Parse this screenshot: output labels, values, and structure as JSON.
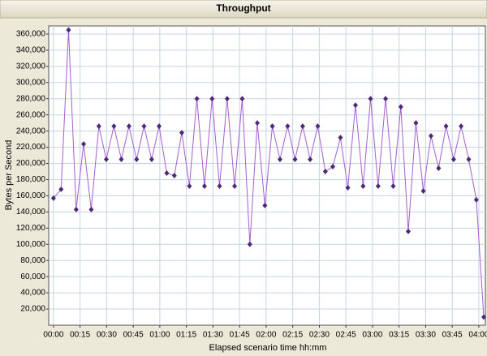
{
  "chart_data": {
    "type": "line",
    "title": "Throughput",
    "x_label": "Elapsed scenario time hh:mm",
    "y_label": "Bytes per Second",
    "x": [
      0,
      4.3,
      8.5,
      12.8,
      17.0,
      21.3,
      25.6,
      29.8,
      34.1,
      38.3,
      42.6,
      46.9,
      51.1,
      55.4,
      59.6,
      63.9,
      68.2,
      72.4,
      76.7,
      80.9,
      85.2,
      89.5,
      93.7,
      98.0,
      102.2,
      106.5,
      110.8,
      115.0,
      119.3,
      123.5,
      127.8,
      132.1,
      136.3,
      140.6,
      144.8,
      149.1,
      153.4,
      157.6,
      161.9,
      166.1,
      170.4,
      174.7,
      178.9,
      183.2,
      187.4,
      191.7,
      196.0,
      200.2,
      204.5,
      208.7,
      213.0,
      217.3,
      221.5,
      225.8,
      230.0,
      234.3,
      238.6,
      242.8
    ],
    "series": [
      {
        "name": "Throughput",
        "color": "#a45fd0",
        "marker_color": "#4b2a78",
        "values": [
          157000,
          168000,
          365000,
          143000,
          224000,
          143000,
          246000,
          205000,
          246000,
          205000,
          246000,
          205000,
          246000,
          205000,
          246000,
          188000,
          185000,
          238000,
          172000,
          280000,
          172000,
          280000,
          172000,
          280000,
          172000,
          280000,
          100000,
          250000,
          148000,
          246000,
          205000,
          246000,
          205000,
          246000,
          205000,
          246000,
          190000,
          196000,
          232000,
          170000,
          272000,
          172000,
          280000,
          172000,
          280000,
          172000,
          270000,
          116000,
          250000,
          166000,
          234000,
          194000,
          246000,
          205000,
          246000,
          205000,
          155000,
          10000
        ]
      }
    ],
    "xlim": [
      -2.7,
      243.7
    ],
    "ylim": [
      0,
      370000
    ],
    "xticks": [
      {
        "value": 0,
        "label": "00:00"
      },
      {
        "value": 15,
        "label": "00:15"
      },
      {
        "value": 30,
        "label": "00:30"
      },
      {
        "value": 45,
        "label": "00:45"
      },
      {
        "value": 60,
        "label": "01:00"
      },
      {
        "value": 75,
        "label": "01:15"
      },
      {
        "value": 90,
        "label": "01:30"
      },
      {
        "value": 105,
        "label": "01:45"
      },
      {
        "value": 120,
        "label": "02:00"
      },
      {
        "value": 135,
        "label": "02:15"
      },
      {
        "value": 150,
        "label": "02:30"
      },
      {
        "value": 165,
        "label": "02:45"
      },
      {
        "value": 180,
        "label": "03:00"
      },
      {
        "value": 195,
        "label": "03:15"
      },
      {
        "value": 210,
        "label": "03:30"
      },
      {
        "value": 225,
        "label": "03:45"
      },
      {
        "value": 240,
        "label": "04:00"
      }
    ],
    "yticks": [
      {
        "value": 20000,
        "label": "20,000"
      },
      {
        "value": 40000,
        "label": "40,000"
      },
      {
        "value": 60000,
        "label": "60,000"
      },
      {
        "value": 80000,
        "label": "80,000"
      },
      {
        "value": 100000,
        "label": "100,000"
      },
      {
        "value": 120000,
        "label": "120,000"
      },
      {
        "value": 140000,
        "label": "140,000"
      },
      {
        "value": 160000,
        "label": "160,000"
      },
      {
        "value": 180000,
        "label": "180,000"
      },
      {
        "value": 200000,
        "label": "200,000"
      },
      {
        "value": 220000,
        "label": "220,000"
      },
      {
        "value": 240000,
        "label": "240,000"
      },
      {
        "value": 260000,
        "label": "260,000"
      },
      {
        "value": 280000,
        "label": "280,000"
      },
      {
        "value": 300000,
        "label": "300,000"
      },
      {
        "value": 320000,
        "label": "320,000"
      },
      {
        "value": 340000,
        "label": "340,000"
      },
      {
        "value": 360000,
        "label": "360,000"
      }
    ],
    "grid": true
  }
}
